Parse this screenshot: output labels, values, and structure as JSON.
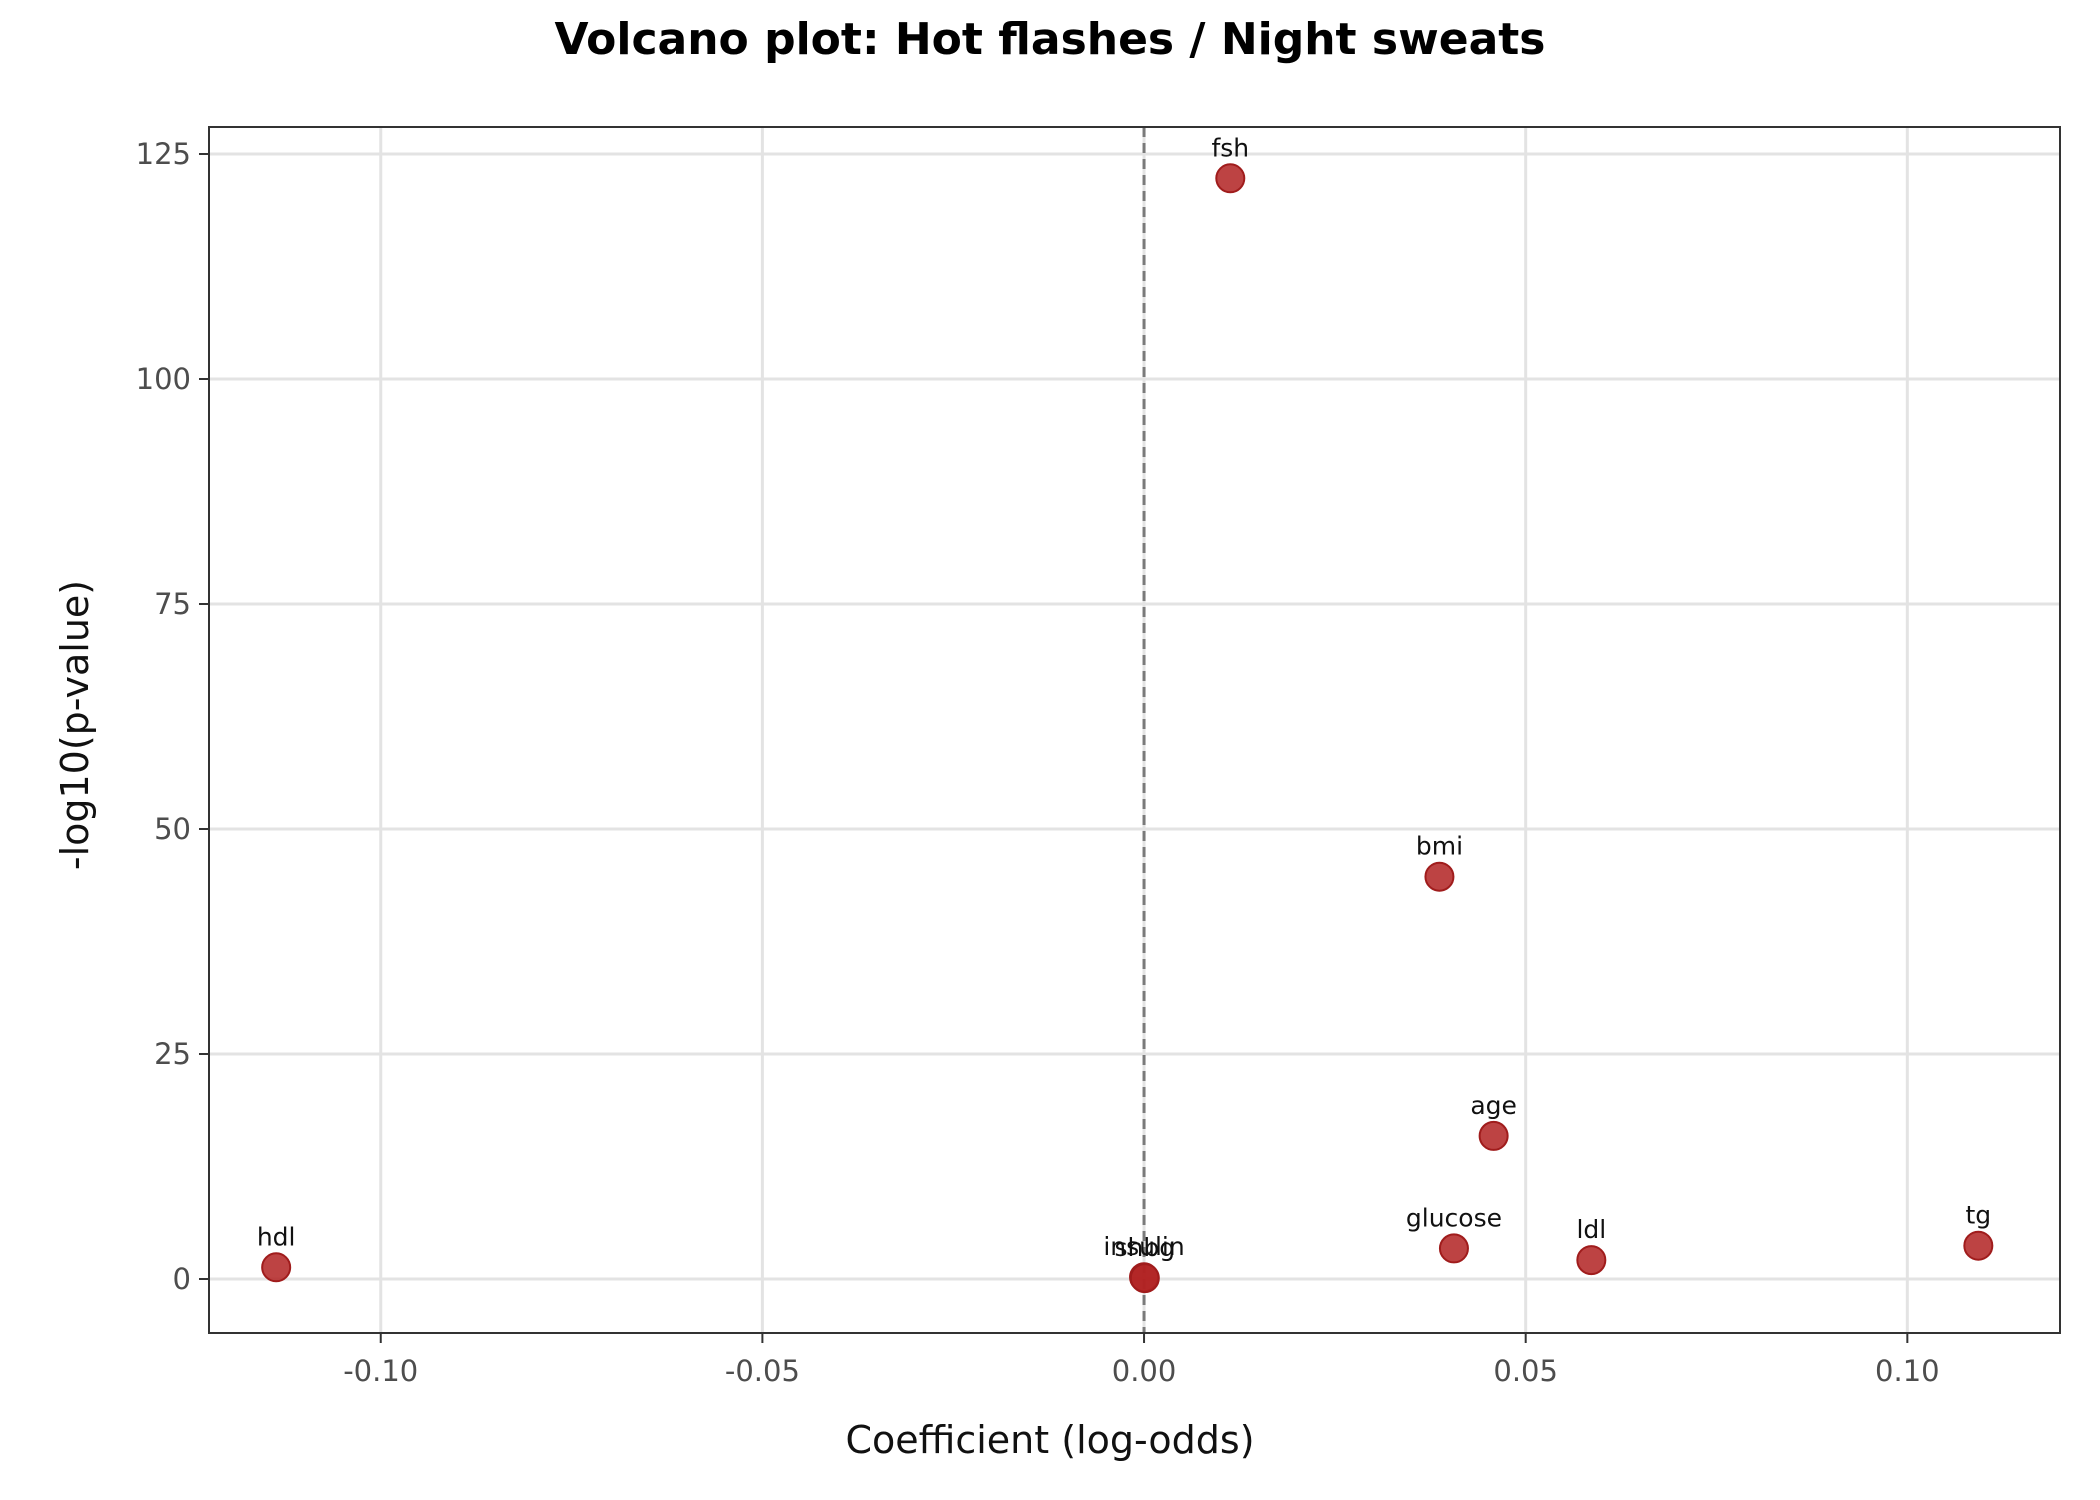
{
  "chart_data": {
    "type": "scatter",
    "title": "Volcano plot: Hot flashes / Night sweats",
    "xlabel": "Coefficient (log-odds)",
    "ylabel": "-log10(p-value)",
    "xlim": [
      -0.1225,
      0.12
    ],
    "ylim": [
      -6,
      128
    ],
    "x_ticks": [
      -0.1,
      -0.05,
      0.0,
      0.05,
      0.1
    ],
    "x_tick_labels": [
      "-0.10",
      "-0.05",
      "0.00",
      "0.05",
      "0.10"
    ],
    "y_ticks": [
      0,
      25,
      50,
      75,
      100,
      125
    ],
    "y_tick_labels": [
      "0",
      "25",
      "50",
      "75",
      "100",
      "125"
    ],
    "grid": true,
    "reference_line": {
      "x": 0,
      "style": "dashed"
    },
    "point_color": "#b22222",
    "points": [
      {
        "label": "fsh",
        "x": 0.0113,
        "y": 122.3
      },
      {
        "label": "bmi",
        "x": 0.0387,
        "y": 44.7
      },
      {
        "label": "age",
        "x": 0.0458,
        "y": 15.9
      },
      {
        "label": "glucose",
        "x": 0.0406,
        "y": 3.4
      },
      {
        "label": "ldl",
        "x": 0.0586,
        "y": 2.1
      },
      {
        "label": "tg",
        "x": 0.1093,
        "y": 3.7
      },
      {
        "label": "hdl",
        "x": -0.1137,
        "y": 1.3
      },
      {
        "label": "insulin",
        "x": 0.0,
        "y": 0.2
      },
      {
        "label": "shbg",
        "x": 0.0001,
        "y": 0.1
      }
    ]
  }
}
